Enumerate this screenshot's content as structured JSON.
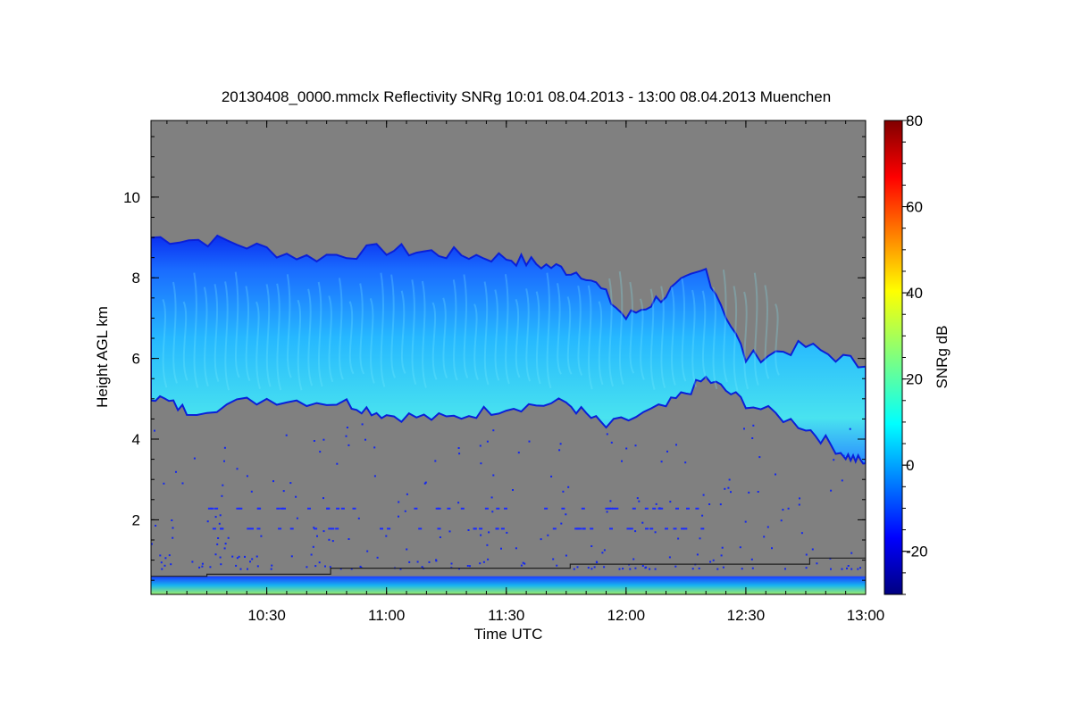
{
  "chart_data": {
    "type": "heatmap",
    "title": "20130408_0000.mmclx Reflectivity SNRg   10:01 08.04.2013 - 13:00 08.04.2013 Muenchen",
    "xlabel": "Time UTC",
    "ylabel": "Height AGL km",
    "x_unit": "hours UTC",
    "xlim": [
      "10:01",
      "13:00"
    ],
    "x_ticks": [
      "10:30",
      "11:00",
      "11:30",
      "12:00",
      "12:30",
      "13:00"
    ],
    "ylim": [
      0.15,
      11.9
    ],
    "y_ticks": [
      "2",
      "4",
      "6",
      "8",
      "10"
    ],
    "background_color": "#808080",
    "colorbar": {
      "label": "SNRg dB",
      "range": [
        -30,
        80
      ],
      "ticks": [
        "-20",
        "0",
        "20",
        "40",
        "60",
        "80"
      ],
      "colormap": "jet"
    },
    "cloud_layer": {
      "description_units": "km",
      "top_profile": [
        {
          "t": "10:01",
          "h": 9.0
        },
        {
          "t": "10:20",
          "h": 8.9
        },
        {
          "t": "10:40",
          "h": 8.5
        },
        {
          "t": "11:00",
          "h": 8.7
        },
        {
          "t": "11:15",
          "h": 8.6
        },
        {
          "t": "11:30",
          "h": 8.5
        },
        {
          "t": "11:40",
          "h": 8.3
        },
        {
          "t": "11:50",
          "h": 8.1
        },
        {
          "t": "12:00",
          "h": 7.0
        },
        {
          "t": "12:10",
          "h": 7.6
        },
        {
          "t": "12:20",
          "h": 8.2
        },
        {
          "t": "12:30",
          "h": 6.0
        },
        {
          "t": "12:45",
          "h": 6.3
        },
        {
          "t": "13:00",
          "h": 5.8
        }
      ],
      "base_profile": [
        {
          "t": "10:01",
          "h": 5.1
        },
        {
          "t": "10:10",
          "h": 4.7
        },
        {
          "t": "10:30",
          "h": 5.0
        },
        {
          "t": "10:50",
          "h": 4.9
        },
        {
          "t": "11:00",
          "h": 4.6
        },
        {
          "t": "11:15",
          "h": 4.5
        },
        {
          "t": "11:30",
          "h": 4.8
        },
        {
          "t": "11:45",
          "h": 4.9
        },
        {
          "t": "11:55",
          "h": 4.3
        },
        {
          "t": "12:10",
          "h": 4.8
        },
        {
          "t": "12:20",
          "h": 5.5
        },
        {
          "t": "12:30",
          "h": 4.9
        },
        {
          "t": "12:45",
          "h": 4.3
        },
        {
          "t": "12:55",
          "h": 3.6
        },
        {
          "t": "13:00",
          "h": 3.4
        }
      ]
    },
    "surface_echo_top_km": 0.6,
    "step_line": [
      {
        "t": "10:01",
        "h": 0.6
      },
      {
        "t": "10:15",
        "h": 0.65
      },
      {
        "t": "10:46",
        "h": 0.8
      },
      {
        "t": "11:46",
        "h": 0.9
      },
      {
        "t": "12:46",
        "h": 1.05
      },
      {
        "t": "13:00",
        "h": 1.05
      }
    ]
  }
}
